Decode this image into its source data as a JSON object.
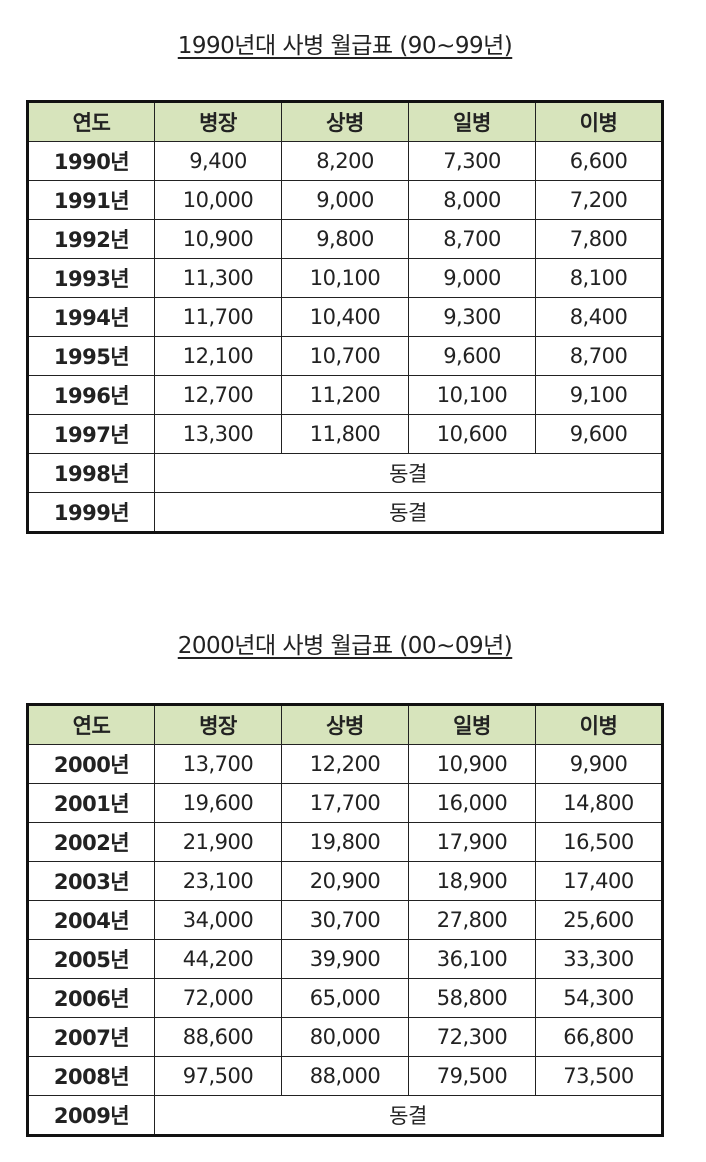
{
  "headers": [
    "연도",
    "병장",
    "상병",
    "일병",
    "이병"
  ],
  "header_color": "#d7e4bc",
  "tables": [
    {
      "title": "1990년대 사병 월급표 (90~99년)",
      "rows": [
        {
          "year": "1990년",
          "values": [
            "9,400",
            "8,200",
            "7,300",
            "6,600"
          ]
        },
        {
          "year": "1991년",
          "values": [
            "10,000",
            "9,000",
            "8,000",
            "7,200"
          ]
        },
        {
          "year": "1992년",
          "values": [
            "10,900",
            "9,800",
            "8,700",
            "7,800"
          ]
        },
        {
          "year": "1993년",
          "values": [
            "11,300",
            "10,100",
            "9,000",
            "8,100"
          ]
        },
        {
          "year": "1994년",
          "values": [
            "11,700",
            "10,400",
            "9,300",
            "8,400"
          ]
        },
        {
          "year": "1995년",
          "values": [
            "12,100",
            "10,700",
            "9,600",
            "8,700"
          ]
        },
        {
          "year": "1996년",
          "values": [
            "12,700",
            "11,200",
            "10,100",
            "9,100"
          ]
        },
        {
          "year": "1997년",
          "values": [
            "13,300",
            "11,800",
            "10,600",
            "9,600"
          ]
        },
        {
          "year": "1998년",
          "merged": "동결"
        },
        {
          "year": "1999년",
          "merged": "동결"
        }
      ]
    },
    {
      "title": "2000년대 사병 월급표 (00~09년)",
      "rows": [
        {
          "year": "2000년",
          "values": [
            "13,700",
            "12,200",
            "10,900",
            "9,900"
          ]
        },
        {
          "year": "2001년",
          "values": [
            "19,600",
            "17,700",
            "16,000",
            "14,800"
          ]
        },
        {
          "year": "2002년",
          "values": [
            "21,900",
            "19,800",
            "17,900",
            "16,500"
          ]
        },
        {
          "year": "2003년",
          "values": [
            "23,100",
            "20,900",
            "18,900",
            "17,400"
          ]
        },
        {
          "year": "2004년",
          "values": [
            "34,000",
            "30,700",
            "27,800",
            "25,600"
          ]
        },
        {
          "year": "2005년",
          "values": [
            "44,200",
            "39,900",
            "36,100",
            "33,300"
          ]
        },
        {
          "year": "2006년",
          "values": [
            "72,000",
            "65,000",
            "58,800",
            "54,300"
          ]
        },
        {
          "year": "2007년",
          "values": [
            "88,600",
            "80,000",
            "72,300",
            "66,800"
          ]
        },
        {
          "year": "2008년",
          "values": [
            "97,500",
            "88,000",
            "79,500",
            "73,500"
          ]
        },
        {
          "year": "2009년",
          "merged": "동결"
        }
      ]
    }
  ]
}
